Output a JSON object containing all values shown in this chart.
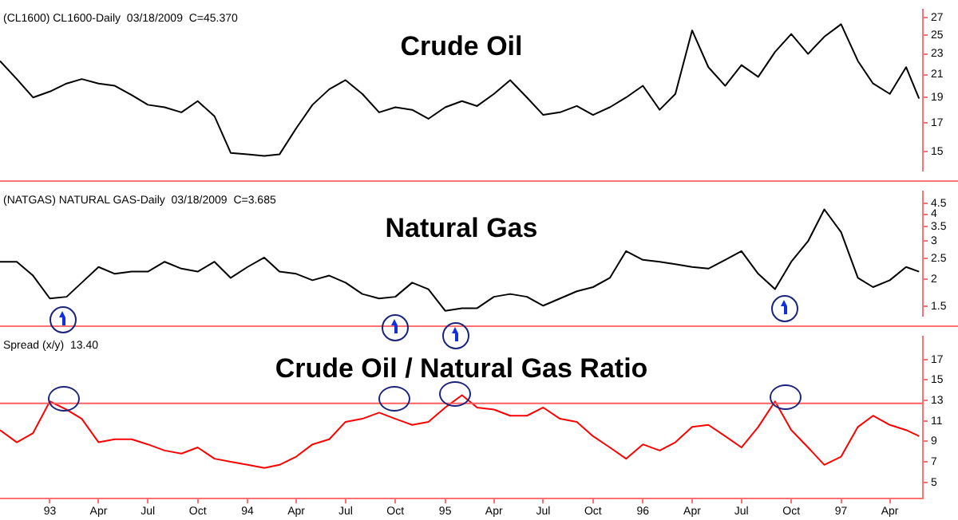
{
  "chart_data": [
    {
      "type": "line",
      "title": "Crude Oil",
      "annotations": [
        "(CL1600) CL1600-Daily  03/18/2009  C=45.370"
      ],
      "log": true,
      "tick_labels": "y",
      "color": "#000000",
      "x": [
        "1992-10-01",
        "1992-11-01",
        "1992-12-01",
        "1993-01-01",
        "1993-02-01",
        "1993-03-01",
        "1993-04-01",
        "1993-05-01",
        "1993-06-01",
        "1993-07-01",
        "1993-08-01",
        "1993-09-01",
        "1993-10-01",
        "1993-11-01",
        "1993-12-01",
        "1994-01-01",
        "1994-02-01",
        "1994-03-01",
        "1994-04-01",
        "1994-05-01",
        "1994-06-01",
        "1994-07-01",
        "1994-08-01",
        "1994-09-01",
        "1994-10-01",
        "1994-11-01",
        "1994-12-01",
        "1995-01-01",
        "1995-02-01",
        "1995-03-01",
        "1995-04-01",
        "1995-05-01",
        "1995-06-01",
        "1995-07-01",
        "1995-08-01",
        "1995-09-01",
        "1995-10-01",
        "1995-11-01",
        "1995-12-01",
        "1996-01-01",
        "1996-02-01",
        "1996-03-01",
        "1996-04-01",
        "1996-05-01",
        "1996-06-01",
        "1996-07-01",
        "1996-08-01",
        "1996-09-01",
        "1996-10-01",
        "1996-11-01",
        "1996-12-01",
        "1997-01-01",
        "1997-02-01",
        "1997-03-01",
        "1997-04-01",
        "1997-05-01",
        "1997-05-25"
      ],
      "values": [
        22.3,
        20.6,
        19.0,
        19.5,
        20.2,
        20.6,
        20.2,
        20.0,
        19.2,
        18.4,
        18.2,
        17.8,
        18.7,
        17.5,
        14.9,
        14.8,
        14.7,
        14.8,
        16.6,
        18.4,
        19.7,
        20.5,
        19.3,
        17.8,
        18.2,
        18.0,
        17.3,
        18.2,
        18.7,
        18.3,
        19.3,
        20.5,
        19.0,
        17.6,
        17.8,
        18.3,
        17.6,
        18.2,
        19.0,
        20.0,
        18.0,
        19.3,
        25.5,
        21.7,
        20.0,
        21.9,
        20.8,
        23.2,
        25.1,
        23.0,
        24.8,
        26.2,
        22.3,
        20.2,
        19.3,
        21.7,
        18.9
      ],
      "xlim": [
        "1992-10-01",
        "1997-06-01"
      ],
      "ylim": [
        13.8,
        27.9
      ],
      "yticks": [
        15,
        17,
        19,
        21,
        23,
        25,
        27
      ]
    },
    {
      "type": "line",
      "title": "Natural Gas",
      "annotations": [
        "(NATGAS) NATURAL GAS-Daily  03/18/2009  C=3.685"
      ],
      "log": true,
      "tick_labels": "y",
      "color": "#000000",
      "x": [
        "1992-10-01",
        "1992-11-01",
        "1992-12-01",
        "1993-01-01",
        "1993-02-01",
        "1993-03-01",
        "1993-04-01",
        "1993-05-01",
        "1993-06-01",
        "1993-07-01",
        "1993-08-01",
        "1993-09-01",
        "1993-10-01",
        "1993-11-01",
        "1993-12-01",
        "1994-01-01",
        "1994-02-01",
        "1994-03-01",
        "1994-04-01",
        "1994-05-01",
        "1994-06-01",
        "1994-07-01",
        "1994-08-01",
        "1994-09-01",
        "1994-10-01",
        "1994-11-01",
        "1994-12-01",
        "1995-01-01",
        "1995-02-01",
        "1995-03-01",
        "1995-04-01",
        "1995-05-01",
        "1995-06-01",
        "1995-07-01",
        "1995-08-01",
        "1995-09-01",
        "1995-10-01",
        "1995-11-01",
        "1995-12-01",
        "1996-01-01",
        "1996-02-01",
        "1996-03-01",
        "1996-04-01",
        "1996-05-01",
        "1996-06-01",
        "1996-07-01",
        "1996-08-01",
        "1996-09-01",
        "1996-10-01",
        "1996-11-01",
        "1996-12-01",
        "1997-01-01",
        "1997-02-01",
        "1997-03-01",
        "1997-04-01",
        "1997-05-01",
        "1997-05-25"
      ],
      "values": [
        2.41,
        2.41,
        2.08,
        1.63,
        1.66,
        1.93,
        2.28,
        2.12,
        2.17,
        2.17,
        2.41,
        2.24,
        2.17,
        2.41,
        2.03,
        2.28,
        2.52,
        2.17,
        2.12,
        1.98,
        2.08,
        1.93,
        1.71,
        1.63,
        1.66,
        1.93,
        1.8,
        1.43,
        1.47,
        1.47,
        1.66,
        1.71,
        1.66,
        1.51,
        1.63,
        1.76,
        1.84,
        2.03,
        2.7,
        2.46,
        2.41,
        2.35,
        2.28,
        2.24,
        2.46,
        2.7,
        2.12,
        1.8,
        2.41,
        3.0,
        4.21,
        3.3,
        2.03,
        1.84,
        1.98,
        2.28,
        2.17
      ],
      "xlim": [
        "1992-10-01",
        "1997-06-01"
      ],
      "ylim": [
        1.36,
        5.08
      ],
      "yticks": [
        1.5,
        2,
        2.5,
        3,
        3.5,
        4,
        4.5
      ]
    },
    {
      "type": "line",
      "title": "Crude Oil / Natural Gas Ratio",
      "annotations": [
        "Spread (x/y)  13.40"
      ],
      "color": "#ff0000",
      "x": [
        "1992-10-01",
        "1992-11-01",
        "1992-12-01",
        "1993-01-01",
        "1993-02-01",
        "1993-03-01",
        "1993-04-01",
        "1993-05-01",
        "1993-06-01",
        "1993-07-01",
        "1993-08-01",
        "1993-09-01",
        "1993-10-01",
        "1993-11-01",
        "1993-12-01",
        "1994-01-01",
        "1994-02-01",
        "1994-03-01",
        "1994-04-01",
        "1994-05-01",
        "1994-06-01",
        "1994-07-01",
        "1994-08-01",
        "1994-09-01",
        "1994-10-01",
        "1994-11-01",
        "1994-12-01",
        "1995-01-01",
        "1995-02-01",
        "1995-03-01",
        "1995-04-01",
        "1995-05-01",
        "1995-06-01",
        "1995-07-01",
        "1995-08-01",
        "1995-09-01",
        "1995-10-01",
        "1995-11-01",
        "1995-12-01",
        "1996-01-01",
        "1996-02-01",
        "1996-03-01",
        "1996-04-01",
        "1996-05-01",
        "1996-06-01",
        "1996-07-01",
        "1996-08-01",
        "1996-09-01",
        "1996-10-01",
        "1996-11-01",
        "1996-12-01",
        "1997-01-01",
        "1997-02-01",
        "1997-03-01",
        "1997-04-01",
        "1997-05-01",
        "1997-05-25"
      ],
      "values": [
        10.1,
        8.9,
        9.8,
        12.9,
        12.1,
        11.2,
        8.9,
        9.2,
        9.2,
        8.7,
        8.1,
        7.8,
        8.4,
        7.3,
        7.0,
        6.7,
        6.4,
        6.7,
        7.5,
        8.7,
        9.2,
        10.9,
        11.2,
        11.8,
        11.2,
        10.6,
        10.9,
        12.3,
        13.5,
        12.3,
        12.1,
        11.5,
        11.5,
        12.3,
        11.2,
        10.9,
        9.5,
        8.4,
        7.3,
        8.7,
        8.1,
        8.9,
        10.4,
        10.6,
        9.5,
        8.4,
        10.4,
        12.9,
        10.1,
        8.4,
        6.7,
        7.5,
        10.4,
        11.5,
        10.6,
        10.1,
        9.5
      ],
      "xlim": [
        "1992-10-01",
        "1997-06-01"
      ],
      "ylim": [
        3.4,
        19.2
      ],
      "yticks": [
        5,
        7,
        9,
        11,
        13,
        15,
        17
      ],
      "xticks": [
        {
          "value": "1993-01-01",
          "label": "93"
        },
        {
          "value": "1993-04-01",
          "label": "Apr"
        },
        {
          "value": "1993-07-01",
          "label": "Jul"
        },
        {
          "value": "1993-10-01",
          "label": "Oct"
        },
        {
          "value": "1994-01-01",
          "label": "94"
        },
        {
          "value": "1994-04-01",
          "label": "Apr"
        },
        {
          "value": "1994-07-01",
          "label": "Jul"
        },
        {
          "value": "1994-10-01",
          "label": "Oct"
        },
        {
          "value": "1995-01-01",
          "label": "95"
        },
        {
          "value": "1995-04-01",
          "label": "Apr"
        },
        {
          "value": "1995-07-01",
          "label": "Jul"
        },
        {
          "value": "1995-10-01",
          "label": "Oct"
        },
        {
          "value": "1996-01-01",
          "label": "96"
        },
        {
          "value": "1996-04-01",
          "label": "Apr"
        },
        {
          "value": "1996-07-01",
          "label": "Jul"
        },
        {
          "value": "1996-10-01",
          "label": "Oct"
        },
        {
          "value": "1997-01-01",
          "label": "97"
        },
        {
          "value": "1997-04-01",
          "label": "Apr"
        }
      ],
      "ref_lines": [
        {
          "axis": "y",
          "value": 12.7,
          "color": "#ff6060"
        }
      ]
    }
  ]
}
